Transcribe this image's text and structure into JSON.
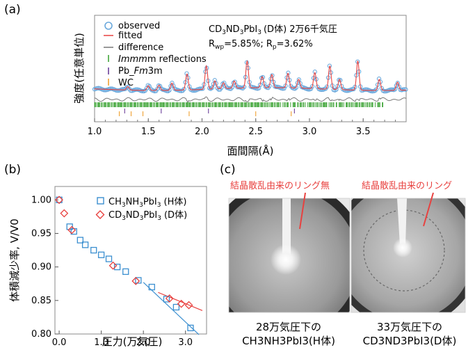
{
  "figure": {
    "panel_a": {
      "label": "(a)",
      "xlabel": "面間隔(Å)",
      "ylabel": "強度(任意単位)",
      "legend": {
        "observed": "observed",
        "fitted": "fitted",
        "difference": "difference",
        "imm": "Imm",
        "imm_suffix": "m reflections",
        "pb_prefix": "Pb_",
        "pb_fm": "Fm",
        "pb_suffix": "3m",
        "wc": "WC"
      },
      "compound": {
        "c1": "CD",
        "s1": "3",
        "c2": "ND",
        "s2": "3",
        "c3": "PbI",
        "s3": "3",
        "tail": "(D体) 2万6千気圧"
      },
      "rwp": {
        "r": "R",
        "wp": "wp",
        "v1": "=5.85%; R",
        "p": "p",
        "v2": "=3.62%"
      },
      "colors": {
        "observed": "#6aa8dc",
        "fitted": "#e8413f",
        "difference": "#777777",
        "imm": "#41a63a",
        "pb": "#6b3f99",
        "wc": "#f0a030"
      }
    },
    "panel_b": {
      "label": "(b)",
      "xlabel": "圧力(万気圧)",
      "ylabel": "体積減少率, V/V0",
      "legend_h": {
        "c1": "CH",
        "s1": "3",
        "c2": "NH",
        "s2": "3",
        "c3": "PbI",
        "s3": "3",
        "tail": "(H体)"
      },
      "legend_d": {
        "c1": "CD",
        "s1": "3",
        "c2": "ND",
        "s2": "3",
        "c3": "PbI",
        "s3": "3",
        "tail": "(D体)"
      },
      "colors": {
        "h": "#3b8fd0",
        "d": "#e8413f"
      }
    },
    "panel_c": {
      "label": "(c)",
      "annot_left": "結晶散乱由来のリング無",
      "annot_right": "結晶散乱由来のリング",
      "cap_left_1": "28万気圧下の",
      "cap_left_2": "CH3NH3PbI3(H体)",
      "cap_right_1": "33万気圧下の",
      "cap_right_2": "CD3ND3PbI3(D体)",
      "annot_color": "#e8413f"
    }
  },
  "chart_data": [
    {
      "type": "line",
      "panel": "(a)",
      "xlabel": "面間隔(Å)",
      "ylabel": "強度(任意単位)",
      "xlim": [
        1.0,
        3.9
      ],
      "xticks": [
        1.0,
        1.5,
        2.0,
        2.5,
        3.0,
        3.5
      ],
      "xticklabels": [
        "1.0",
        "1.5",
        "2.0",
        "2.5",
        "3.0",
        "3.5"
      ],
      "peaks": [
        {
          "d": 1.31,
          "h": 0.12
        },
        {
          "d": 1.5,
          "h": 0.16
        },
        {
          "d": 1.6,
          "h": 0.18
        },
        {
          "d": 1.72,
          "h": 0.25
        },
        {
          "d": 1.86,
          "h": 0.55
        },
        {
          "d": 2.04,
          "h": 0.8
        },
        {
          "d": 2.12,
          "h": 0.28
        },
        {
          "d": 2.2,
          "h": 0.2
        },
        {
          "d": 2.3,
          "h": 0.25
        },
        {
          "d": 2.42,
          "h": 0.92
        },
        {
          "d": 2.56,
          "h": 0.38
        },
        {
          "d": 2.65,
          "h": 0.45
        },
        {
          "d": 2.8,
          "h": 0.5
        },
        {
          "d": 2.9,
          "h": 0.3
        },
        {
          "d": 3.05,
          "h": 0.55
        },
        {
          "d": 3.19,
          "h": 0.8
        },
        {
          "d": 3.28,
          "h": 0.35
        },
        {
          "d": 3.45,
          "h": 1.0
        },
        {
          "d": 3.65,
          "h": 0.38
        },
        {
          "d": 3.82,
          "h": 0.28
        }
      ],
      "pb_reflections": [
        1.28,
        1.62,
        2.06,
        2.86
      ],
      "wc_reflections": [
        1.23,
        1.34,
        1.45,
        1.88,
        2.5,
        2.83
      ],
      "series": [
        {
          "name": "observed"
        },
        {
          "name": "fitted"
        },
        {
          "name": "difference"
        },
        {
          "name": "Immm reflections"
        },
        {
          "name": "Pb_Fm3m"
        },
        {
          "name": "WC"
        }
      ]
    },
    {
      "type": "scatter",
      "panel": "(b)",
      "xlabel": "圧力(万気圧)",
      "ylabel": "体積減少率, V/V0",
      "xlim": [
        -0.1,
        3.5
      ],
      "ylim": [
        0.8,
        1.02
      ],
      "xticks": [
        0.0,
        1.0,
        2.0,
        3.0
      ],
      "xticklabels": [
        "0.0",
        "1.0",
        "2.0",
        "3.0"
      ],
      "yticks": [
        0.8,
        0.85,
        0.9,
        0.95,
        1.0
      ],
      "yticklabels": [
        "0.80",
        "0.85",
        "0.90",
        "0.95",
        "1.00"
      ],
      "series": [
        {
          "name": "CH3NH3PbI3 (H体)",
          "points": [
            [
              0.0,
              1.0
            ],
            [
              0.25,
              0.96
            ],
            [
              0.35,
              0.953
            ],
            [
              0.5,
              0.94
            ],
            [
              0.62,
              0.933
            ],
            [
              0.82,
              0.925
            ],
            [
              1.0,
              0.918
            ],
            [
              1.18,
              0.912
            ],
            [
              1.38,
              0.9
            ],
            [
              1.58,
              0.893
            ],
            [
              1.88,
              0.88
            ],
            [
              2.2,
              0.87
            ],
            [
              2.55,
              0.852
            ],
            [
              2.78,
              0.84
            ],
            [
              3.12,
              0.809
            ]
          ]
        },
        {
          "name": "CD3ND3PbI3 (D体)",
          "points": [
            [
              0.0,
              1.0
            ],
            [
              0.12,
              0.98
            ],
            [
              0.3,
              0.955
            ],
            [
              1.28,
              0.902
            ],
            [
              1.82,
              0.879
            ],
            [
              2.62,
              0.853
            ],
            [
              2.9,
              0.845
            ],
            [
              3.08,
              0.843
            ]
          ]
        }
      ],
      "fit_lines": [
        {
          "series": "H",
          "x": [
            2.0,
            3.32
          ],
          "y": [
            0.877,
            0.799
          ]
        },
        {
          "series": "D",
          "x": [
            2.35,
            3.4
          ],
          "y": [
            0.862,
            0.835
          ]
        }
      ]
    }
  ]
}
